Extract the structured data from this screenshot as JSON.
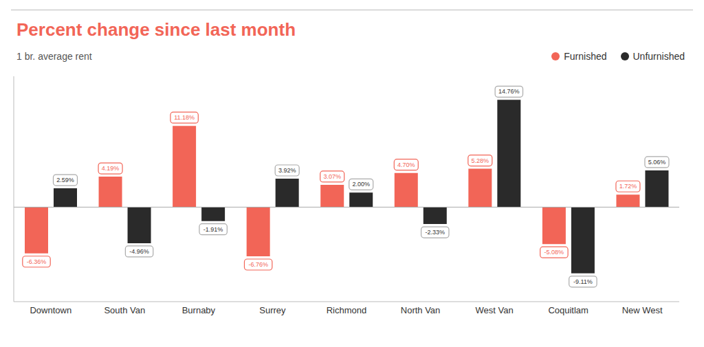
{
  "chart_data": {
    "type": "bar",
    "title": "Percent change since last month",
    "subtitle": "1 br. average rent",
    "categories": [
      "Downtown",
      "South Van",
      "Burnaby",
      "Surrey",
      "Richmond",
      "North Van",
      "West Van",
      "Coquitlam",
      "New West"
    ],
    "series": [
      {
        "name": "Furnished",
        "color": "#f26557",
        "values": [
          -6.36,
          4.19,
          11.18,
          -6.76,
          3.07,
          4.7,
          5.28,
          -5.08,
          1.72
        ],
        "value_labels": [
          "-6.36%",
          "4.19%",
          "11.18%",
          "-6.76%",
          "3.07%",
          "4.70%",
          "5.28%",
          "-5.08%",
          "1.72%"
        ]
      },
      {
        "name": "Unfurnished",
        "color": "#2a2a2a",
        "values": [
          2.59,
          -4.96,
          -1.91,
          3.92,
          2.0,
          -2.33,
          14.76,
          -9.11,
          5.06
        ],
        "value_labels": [
          "2.59%",
          "-4.96%",
          "-1.91%",
          "3.92%",
          "2.00%",
          "-2.33%",
          "14.76%",
          "-9.11%",
          "5.06%"
        ]
      }
    ],
    "ylim": [
      -13,
      18
    ],
    "grid": false,
    "legend": "upper right",
    "data_labels": true,
    "tick_labels": "x"
  }
}
